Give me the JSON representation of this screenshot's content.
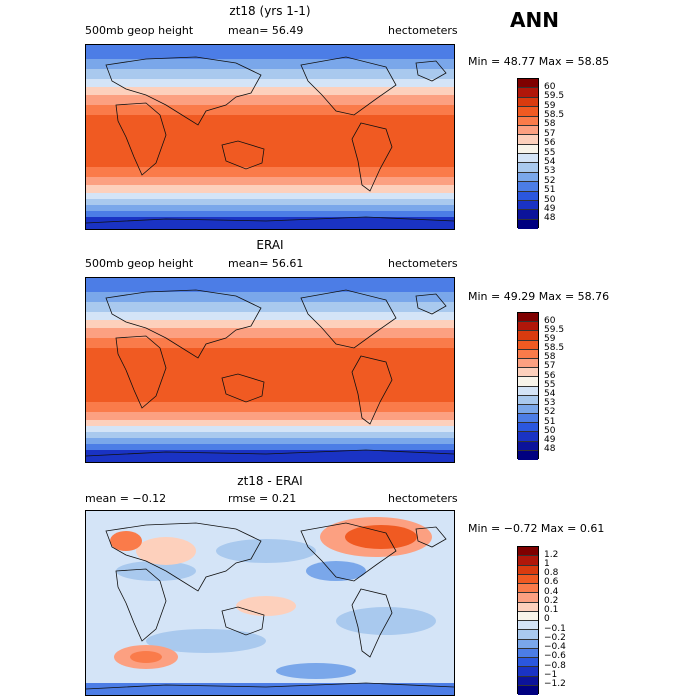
{
  "season": "ANN",
  "panels": [
    {
      "title": "zt18 (yrs 1-1)",
      "left_label": "500mb geop height",
      "mean_text": "mean=  56.49",
      "units": "hectometers",
      "minmax": "Min =  48.77 Max =  58.85",
      "levels": [
        "60",
        "59.5",
        "59",
        "58.5",
        "58",
        "57",
        "56",
        "55",
        "54",
        "53",
        "52",
        "51",
        "50",
        "49",
        "48"
      ],
      "colors": [
        "#7f0000",
        "#b0170a",
        "#d93b0f",
        "#f05a22",
        "#fa7b4a",
        "#fca081",
        "#fdd0bc",
        "#f8f4ea",
        "#d4e4f7",
        "#a9c9ee",
        "#7aa7ea",
        "#4c7de6",
        "#2b57de",
        "#1a33c4",
        "#0c139a",
        "#000080"
      ]
    },
    {
      "title": "ERAI",
      "left_label": "500mb geop height",
      "mean_text": "mean=  56.61",
      "units": "hectometers",
      "minmax": "Min =  49.29 Max =  58.76",
      "levels": [
        "60",
        "59.5",
        "59",
        "58.5",
        "58",
        "57",
        "56",
        "55",
        "54",
        "53",
        "52",
        "51",
        "50",
        "49",
        "48"
      ],
      "colors": [
        "#7f0000",
        "#b0170a",
        "#d93b0f",
        "#f05a22",
        "#fa7b4a",
        "#fca081",
        "#fdd0bc",
        "#f8f4ea",
        "#d4e4f7",
        "#a9c9ee",
        "#7aa7ea",
        "#4c7de6",
        "#2b57de",
        "#1a33c4",
        "#0c139a",
        "#000080"
      ]
    },
    {
      "title": "zt18 - ERAI",
      "left_label": "mean =  −0.12",
      "mid_label": "rmse =   0.21",
      "units": "hectometers",
      "minmax": "Min = −0.72 Max =   0.61",
      "levels": [
        "1.2",
        "1",
        "0.8",
        "0.6",
        "0.4",
        "0.2",
        "0.1",
        "0",
        "−0.1",
        "−0.2",
        "−0.4",
        "−0.6",
        "−0.8",
        "−1",
        "−1.2"
      ],
      "colors": [
        "#7f0000",
        "#b0170a",
        "#d93b0f",
        "#f05a22",
        "#fa7b4a",
        "#fca081",
        "#fdd0bc",
        "#f8f4ea",
        "#d4e4f7",
        "#a9c9ee",
        "#7aa7ea",
        "#4c7de6",
        "#2b57de",
        "#1a33c4",
        "#0c139a",
        "#000080"
      ]
    }
  ],
  "chart_data": {
    "type": "heatmap",
    "season": "ANN",
    "variable": "500mb geop height",
    "units": "hectometers",
    "maps": [
      {
        "name": "zt18 (yrs 1-1)",
        "mean": 56.49,
        "min": 48.77,
        "max": 58.85,
        "contour_levels": [
          48,
          49,
          50,
          51,
          52,
          53,
          54,
          55,
          56,
          57,
          58,
          58.5,
          59,
          59.5,
          60
        ]
      },
      {
        "name": "ERAI",
        "mean": 56.61,
        "min": 49.29,
        "max": 58.76,
        "contour_levels": [
          48,
          49,
          50,
          51,
          52,
          53,
          54,
          55,
          56,
          57,
          58,
          58.5,
          59,
          59.5,
          60
        ]
      },
      {
        "name": "zt18 - ERAI",
        "mean": -0.12,
        "rmse": 0.21,
        "min": -0.72,
        "max": 0.61,
        "contour_levels": [
          -1.2,
          -1,
          -0.8,
          -0.6,
          -0.4,
          -0.2,
          -0.1,
          0,
          0.1,
          0.2,
          0.4,
          0.6,
          0.8,
          1,
          1.2
        ]
      }
    ]
  }
}
